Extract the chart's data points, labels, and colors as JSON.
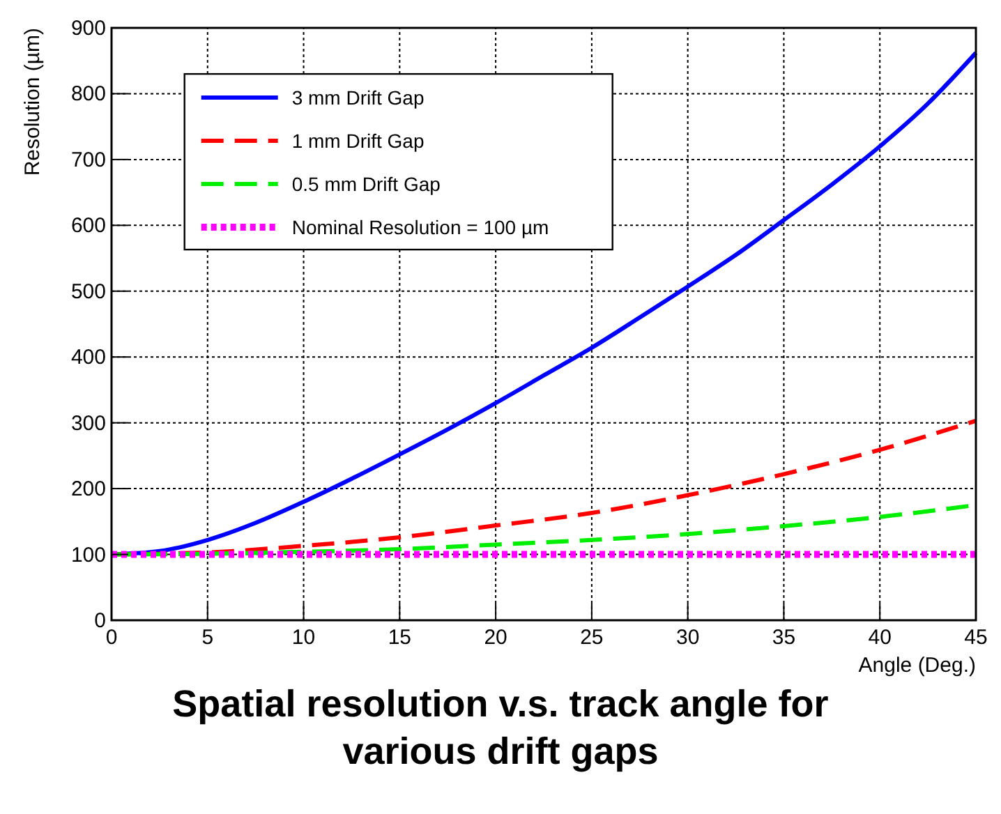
{
  "chart_data": {
    "type": "line",
    "title": "Spatial resolution v.s. track angle for various drift gaps",
    "xlabel": "Angle (Deg.)",
    "ylabel": "Resolution (µm)",
    "x": [
      0,
      2.5,
      5,
      7.5,
      10,
      12.5,
      15,
      17.5,
      20,
      22.5,
      25,
      27.5,
      30,
      32.5,
      35,
      37.5,
      40,
      42.5,
      45
    ],
    "series": [
      {
        "name": "3 mm Drift Gap",
        "color": "#0000ff",
        "line_style": "solid",
        "values": [
          100,
          105,
          122,
          148,
          180,
          215,
          252,
          290,
          330,
          372,
          414,
          460,
          507,
          555,
          608,
          662,
          720,
          785,
          862
        ]
      },
      {
        "name": "1 mm Drift Gap",
        "color": "#ff0000",
        "line_style": "dashed",
        "x": [
          0,
          5,
          10,
          15,
          20,
          25,
          30,
          35,
          40,
          45
        ],
        "values": [
          100,
          103,
          113,
          126,
          144,
          163,
          190,
          222,
          259,
          303
        ]
      },
      {
        "name": "0.5 mm Drift Gap",
        "color": "#00ee00",
        "line_style": "dashed",
        "x": [
          0,
          5,
          10,
          15,
          20,
          25,
          30,
          35,
          40,
          45
        ],
        "values": [
          100,
          101,
          104,
          108,
          115,
          122,
          131,
          143,
          157,
          175
        ]
      },
      {
        "name": "Nominal Resolution = 100 µm",
        "color": "#ff00ff",
        "line_style": "dotted",
        "x": [
          0,
          45
        ],
        "values": [
          100,
          100
        ]
      }
    ],
    "xlim": [
      0,
      45
    ],
    "xticks": [
      0,
      5,
      10,
      15,
      20,
      25,
      30,
      35,
      40,
      45
    ],
    "ylim": [
      0,
      900
    ],
    "yticks": [
      0,
      100,
      200,
      300,
      400,
      500,
      600,
      700,
      800,
      900
    ],
    "grid": true,
    "legend": "top left",
    "marker": "none"
  }
}
